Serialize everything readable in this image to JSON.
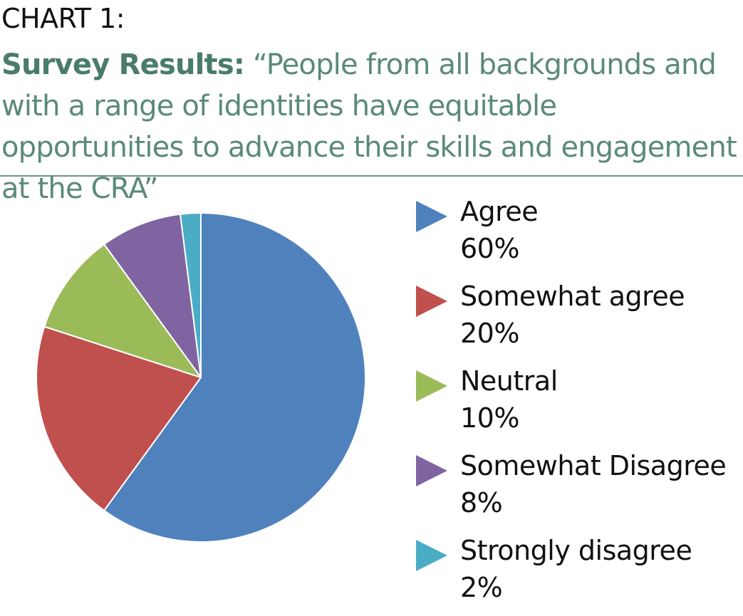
{
  "header": {
    "kicker": "CHART 1:",
    "title_lead": "Survey Results:",
    "title_quote": "“People from all backgrounds and with a range of identities have equitable opportunities to advance their skills and engagement at the CRA”"
  },
  "chart_data": {
    "type": "pie",
    "title": "Survey Results: “People from all backgrounds and with a range of identities have equitable opportunities to advance their skills and engagement at the CRA”",
    "legend_position": "right",
    "slices": [
      {
        "label": "Agree",
        "value": 60,
        "display": "60%",
        "color": "#4f81bd"
      },
      {
        "label": "Somewhat agree",
        "value": 20,
        "display": "20%",
        "color": "#c0504d"
      },
      {
        "label": "Neutral",
        "value": 10,
        "display": "10%",
        "color": "#9bbb59"
      },
      {
        "label": "Somewhat Disagree",
        "value": 8,
        "display": "8%",
        "color": "#8064a2"
      },
      {
        "label": "Strongly disagree",
        "value": 2,
        "display": "2%",
        "color": "#4bacc6"
      }
    ]
  }
}
